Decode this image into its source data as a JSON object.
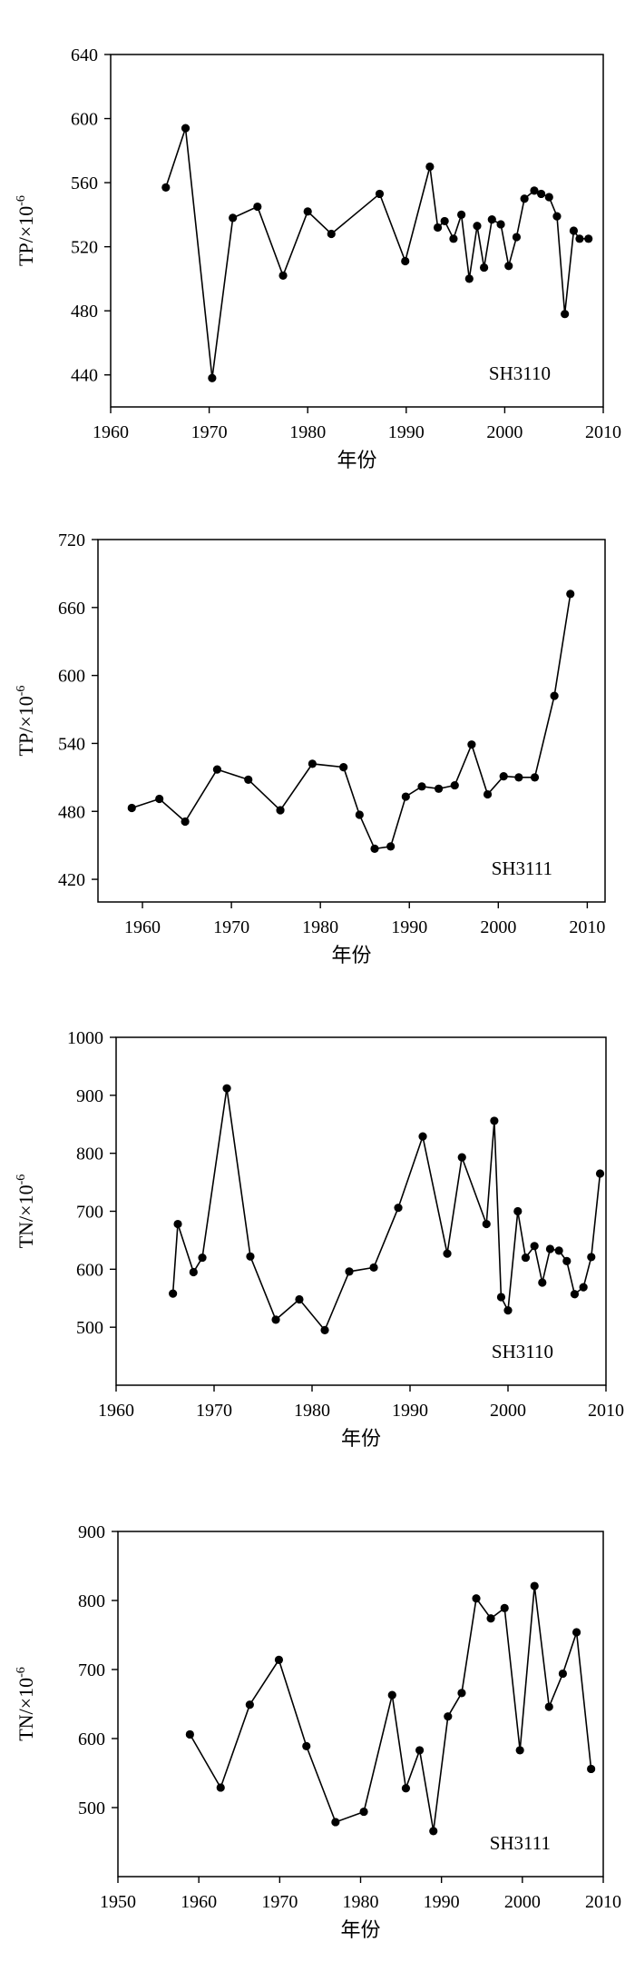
{
  "chart_data": [
    {
      "type": "line",
      "ylabel": "TP/×10",
      "ylabel_sup": "-6",
      "xlabel": "年份",
      "annotation": "SH3110",
      "xlim": [
        1960,
        2010
      ],
      "ylim": [
        420,
        640
      ],
      "xticks": [
        "1960",
        "1970",
        "1980",
        "1990",
        "2000",
        "2010"
      ],
      "yticks": [
        "440",
        "480",
        "520",
        "560",
        "600",
        "640"
      ],
      "series": [
        {
          "x": [
            1965.6,
            1967.6,
            1970.3,
            1972.4,
            1974.9,
            1977.5,
            1980.0,
            1982.4,
            1987.3,
            1989.9,
            1992.4,
            1993.2,
            1993.9,
            1994.8,
            1995.6,
            1996.4,
            1997.2,
            1997.9,
            1998.7,
            1999.6,
            2000.4,
            2001.2,
            2002.0,
            2003.0,
            2003.7,
            2004.5,
            2005.3,
            2006.1,
            2007.0,
            2007.6,
            2008.5
          ],
          "y": [
            557,
            594,
            438,
            538,
            545,
            502,
            542,
            528,
            553,
            511,
            570,
            532,
            536,
            525,
            540,
            500,
            533,
            507,
            537,
            534,
            508,
            526,
            550,
            555,
            553,
            551,
            539,
            478,
            530,
            525,
            525
          ]
        }
      ]
    },
    {
      "type": "line",
      "ylabel": "TP/×10",
      "ylabel_sup": "-6",
      "xlabel": "年份",
      "annotation": "SH3111",
      "xlim": [
        1955,
        2012
      ],
      "ylim": [
        400,
        720
      ],
      "xticks": [
        "1960",
        "1970",
        "1980",
        "1990",
        "2000",
        "2010"
      ],
      "yticks": [
        "420",
        "480",
        "540",
        "600",
        "660",
        "720"
      ],
      "series": [
        {
          "x": [
            1958.8,
            1961.9,
            1964.8,
            1968.4,
            1971.9,
            1975.5,
            1979.1,
            1982.6,
            1984.4,
            1986.1,
            1987.9,
            1989.6,
            1991.4,
            1993.3,
            1995.1,
            1997.0,
            1998.8,
            2000.6,
            2002.3,
            2004.1,
            2006.3,
            2008.1
          ],
          "y": [
            483,
            491,
            471,
            517,
            508,
            481,
            522,
            519,
            477,
            447,
            449,
            493,
            502,
            500,
            503,
            539,
            495,
            511,
            510,
            510,
            582,
            672
          ]
        }
      ]
    },
    {
      "type": "line",
      "ylabel": "TN/×10",
      "ylabel_sup": "-6",
      "xlabel": "年份",
      "annotation": "SH3110",
      "xlim": [
        1960,
        2010
      ],
      "ylim": [
        400,
        1000
      ],
      "xticks": [
        "1960",
        "1970",
        "1980",
        "1990",
        "2000",
        "2010"
      ],
      "yticks": [
        "500",
        "600",
        "700",
        "800",
        "900",
        "1000"
      ],
      "series": [
        {
          "x": [
            1965.8,
            1966.3,
            1967.9,
            1968.8,
            1971.3,
            1973.7,
            1976.3,
            1978.7,
            1981.3,
            1983.8,
            1986.3,
            1988.8,
            1991.3,
            1993.8,
            1995.3,
            1997.8,
            1998.6,
            1999.3,
            2000.0,
            2001.0,
            2001.8,
            2002.7,
            2003.5,
            2004.3,
            2005.2,
            2006.0,
            2006.8,
            2007.7,
            2008.5,
            2009.4
          ],
          "y": [
            558,
            678,
            595,
            620,
            912,
            622,
            513,
            548,
            495,
            596,
            603,
            706,
            829,
            627,
            793,
            678,
            856,
            552,
            529,
            700,
            620,
            640,
            577,
            635,
            632,
            614,
            557,
            569,
            621,
            765
          ]
        }
      ]
    },
    {
      "type": "line",
      "ylabel": "TN/×10",
      "ylabel_sup": "-6",
      "xlabel": "年份",
      "annotation": "SH3111",
      "xlim": [
        1950,
        2010
      ],
      "ylim": [
        400,
        900
      ],
      "xticks": [
        "1950",
        "1960",
        "1970",
        "1980",
        "1990",
        "2000",
        "2010"
      ],
      "yticks": [
        "500",
        "600",
        "700",
        "800",
        "900"
      ],
      "series": [
        {
          "x": [
            1958.9,
            1962.7,
            1966.3,
            1969.9,
            1973.3,
            1976.9,
            1980.4,
            1983.9,
            1985.6,
            1987.3,
            1989.0,
            1990.8,
            1992.5,
            1994.3,
            1996.1,
            1997.8,
            1999.7,
            2001.5,
            2003.3,
            2005.0,
            2006.7,
            2008.5
          ],
          "y": [
            606,
            529,
            649,
            714,
            589,
            479,
            494,
            663,
            528,
            583,
            466,
            632,
            666,
            803,
            774,
            789,
            583,
            821,
            646,
            694,
            754,
            556
          ]
        }
      ]
    }
  ]
}
